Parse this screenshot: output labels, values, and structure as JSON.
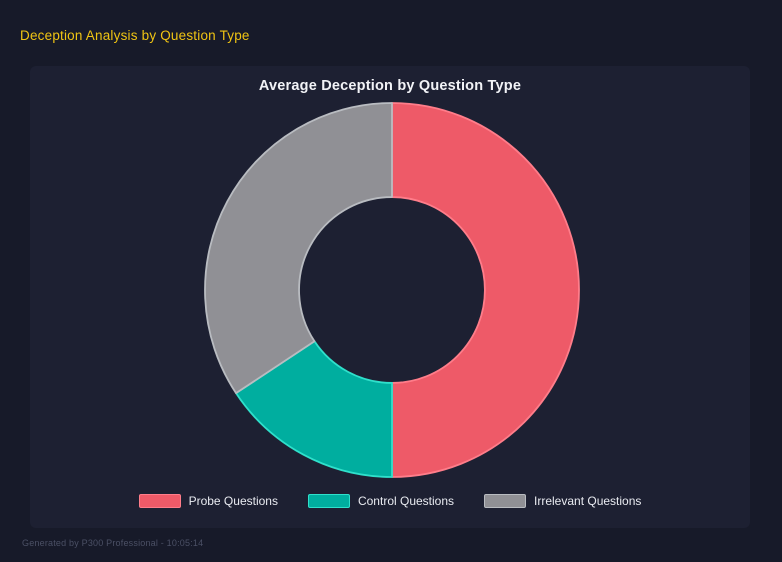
{
  "page": {
    "header_title": "Deception Analysis by Question Type",
    "footer_text": "Generated by P300 Professional - 10:05:14"
  },
  "chart": {
    "title": "Average Deception by Question Type"
  },
  "chart_data": {
    "type": "pie",
    "variant": "donut",
    "title": "Average Deception by Question Type",
    "categories": [
      "Probe Questions",
      "Control Questions",
      "Irrelevant Questions"
    ],
    "values": [
      50.0,
      15.7,
      34.3
    ],
    "unit": "percent of donut (estimated from arc angles)",
    "colors": [
      "#ee5a68",
      "#00ae9f",
      "#909095"
    ],
    "border_colors": [
      "#ff7d8a",
      "#2fe0cb",
      "#b9bcc1"
    ],
    "cutout_percent": 50,
    "start_angle_deg": 0,
    "direction": "clockwise",
    "legend_position": "bottom"
  },
  "theme": {
    "background": "#171a29",
    "panel_background": "#1d2032",
    "header_color": "#f0c413",
    "title_color": "#f2f3f7",
    "legend_text_color": "#e9ebf1",
    "footer_color": "#4b5065"
  }
}
